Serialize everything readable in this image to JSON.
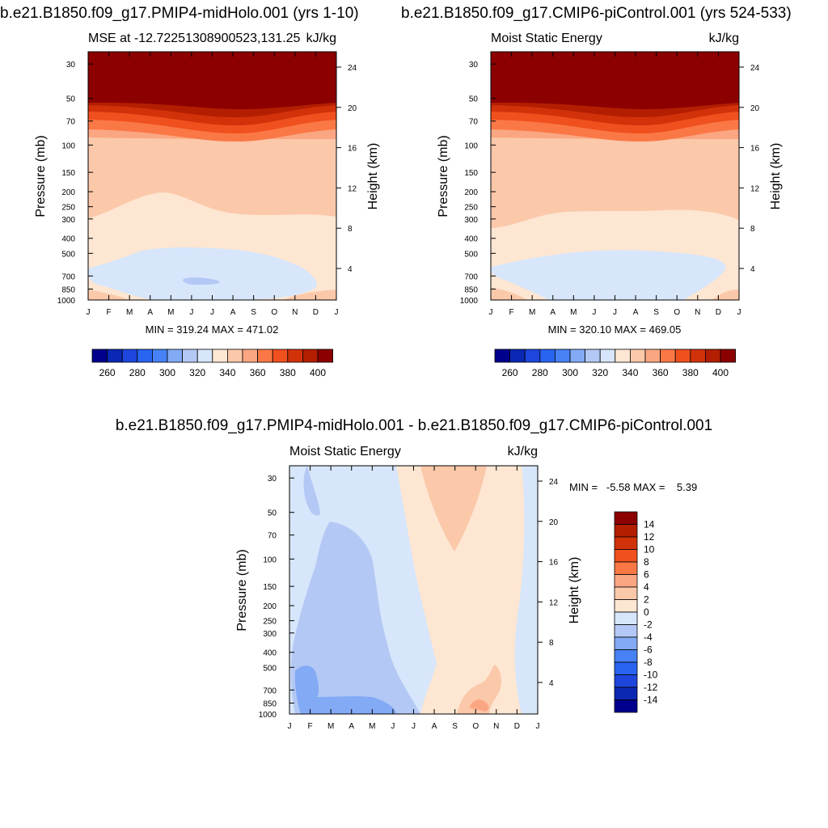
{
  "chart_data": [
    {
      "type": "heatmap",
      "title": "b.e21.B1850.f09_g17.PMIP4-midHolo.001 (yrs 1-10)",
      "subtitle_left": "MSE at -12.72251308900523,131.25",
      "subtitle_right": "kJ/kg",
      "ylabel": "Pressure (mb)",
      "ylabel_right": "Height (km)",
      "x": [
        "J",
        "F",
        "M",
        "A",
        "M",
        "J",
        "J",
        "A",
        "S",
        "O",
        "N",
        "D",
        "J"
      ],
      "y_ticks": [
        "30",
        "50",
        "70",
        "100",
        "150",
        "200",
        "250",
        "300",
        "400",
        "500",
        "700",
        "850",
        "1000"
      ],
      "y_ticks_right": [
        "24",
        "20",
        "16",
        "12",
        "8",
        "4"
      ],
      "stats": "MIN = 319.24 MAX = 471.02",
      "colorbar": {
        "labels": [
          "260",
          "280",
          "300",
          "320",
          "340",
          "360",
          "380",
          "400"
        ]
      }
    },
    {
      "type": "heatmap",
      "title": "b.e21.B1850.f09_g17.CMIP6-piControl.001 (yrs 524-533)",
      "subtitle_left": "Moist Static Energy",
      "subtitle_right": "kJ/kg",
      "ylabel": "Pressure (mb)",
      "ylabel_right": "Height (km)",
      "x": [
        "J",
        "F",
        "M",
        "A",
        "M",
        "J",
        "J",
        "A",
        "S",
        "O",
        "N",
        "D",
        "J"
      ],
      "y_ticks": [
        "30",
        "50",
        "70",
        "100",
        "150",
        "200",
        "250",
        "300",
        "400",
        "500",
        "700",
        "850",
        "1000"
      ],
      "y_ticks_right": [
        "24",
        "20",
        "16",
        "12",
        "8",
        "4"
      ],
      "stats": "MIN = 320.10 MAX = 469.05",
      "colorbar": {
        "labels": [
          "260",
          "280",
          "300",
          "320",
          "340",
          "360",
          "380",
          "400"
        ]
      }
    },
    {
      "type": "heatmap",
      "title": "b.e21.B1850.f09_g17.PMIP4-midHolo.001 - b.e21.B1850.f09_g17.CMIP6-piControl.001",
      "subtitle_left": "Moist Static Energy",
      "subtitle_right": "kJ/kg",
      "ylabel": "Pressure (mb)",
      "ylabel_right": "Height (km)",
      "x": [
        "J",
        "F",
        "M",
        "A",
        "M",
        "J",
        "J",
        "A",
        "S",
        "O",
        "N",
        "D",
        "J"
      ],
      "y_ticks": [
        "30",
        "50",
        "70",
        "100",
        "150",
        "200",
        "250",
        "300",
        "400",
        "500",
        "700",
        "850",
        "1000"
      ],
      "y_ticks_right": [
        "24",
        "20",
        "16",
        "12",
        "8",
        "4"
      ],
      "stats": "MIN =   -5.58 MAX =    5.39",
      "colorbar": {
        "labels": [
          "14",
          "12",
          "10",
          "8",
          "6",
          "4",
          "2",
          "0",
          "-2",
          "-4",
          "-6",
          "-8",
          "-10",
          "-12",
          "-14"
        ]
      }
    }
  ],
  "colors": {
    "scale": [
      "#00008c",
      "#0a28b4",
      "#1e46dc",
      "#2864f0",
      "#4682f5",
      "#82aaf5",
      "#b4c8f5",
      "#d7e6fa",
      "#fde6d2",
      "#fbc8aa",
      "#fba682",
      "#fa7846",
      "#f0501e",
      "#d2320a",
      "#b41e00",
      "#8c0000"
    ],
    "fill_high": "#8c0000",
    "fill_mid": "#fbc8aa",
    "fill_low": "#fde6d2",
    "fill_pale_blue": "#d7e6fa",
    "fill_blue": "#b4c8f5",
    "fill_blue_mid": "#82aaf5",
    "fill_orange": "#fba682"
  }
}
